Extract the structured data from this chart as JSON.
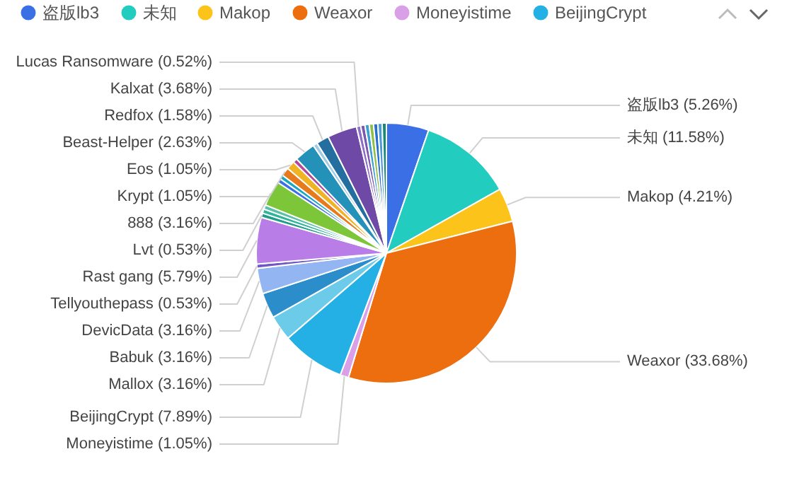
{
  "chart_data": {
    "type": "pie",
    "legend": "top",
    "categories": [
      "盗版lb3",
      "未知",
      "Makop",
      "Weaxor",
      "Moneyistime",
      "BeijingCrypt",
      "Mallox",
      "Babuk",
      "DevicData",
      "Tellyouthepass",
      "Rast gang",
      "Lvt",
      null,
      null,
      "888",
      null,
      null,
      "Krypt",
      "Eos",
      null,
      "Beast-Helper",
      null,
      "Redfox",
      "Kalxat",
      "Lucas Ransomware",
      null,
      null,
      null,
      null,
      null,
      null
    ],
    "values": [
      5.26,
      11.58,
      4.21,
      33.68,
      1.05,
      7.89,
      3.16,
      3.16,
      3.16,
      0.53,
      5.79,
      0.53,
      0.53,
      0.53,
      3.16,
      0.53,
      0.53,
      1.05,
      1.05,
      0.53,
      2.63,
      0.53,
      1.58,
      3.68,
      0.52,
      0.53,
      0.53,
      0.53,
      0.53,
      0.53,
      0.53
    ],
    "value_labels": [
      "(5.26%)",
      "(11.58%)",
      "(4.21%)",
      "(33.68%)",
      "(1.05%)",
      "(7.89%)",
      "(3.16%)",
      "(3.16%)",
      "(3.16%)",
      "(0.53%)",
      "(5.79%)",
      "(0.53%)",
      null,
      null,
      "(3.16%)",
      null,
      null,
      "(1.05%)",
      "(1.05%)",
      null,
      "(2.63%)",
      null,
      "(1.58%)",
      "(3.68%)",
      "(0.52%)",
      null,
      null,
      null,
      null,
      null,
      null
    ],
    "colors": [
      "#3a6fe6",
      "#22cdbf",
      "#fcc41a",
      "#ec6e0f",
      "#d9a0e8",
      "#24b0e4",
      "#6ccbe8",
      "#2b8ecb",
      "#93b6f2",
      "#7057c4",
      "#b97de8",
      "#1f9f8a",
      "#30b49a",
      "#5bc0a8",
      "#7dc63a",
      "#3a6fe6",
      "#1aa7c0",
      "#e67a1c",
      "#f0b323",
      "#b0489c",
      "#2491b8",
      "#9ecbe6",
      "#246fa0",
      "#6e4aa6",
      "#8e6fc8",
      "#7a58b0",
      "#3aa0d0",
      "#8fbf4a",
      "#2a6fd0",
      "#4a9ad8",
      "#168a78"
    ]
  }
}
